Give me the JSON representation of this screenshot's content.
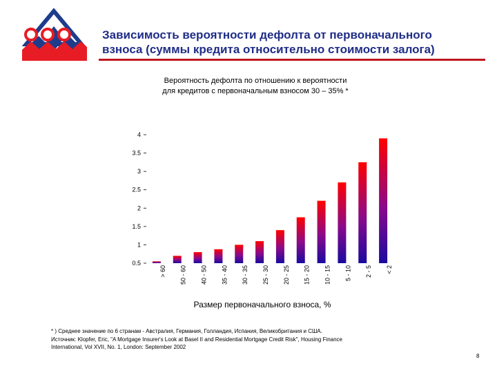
{
  "slide": {
    "title_line1": "Зависимость вероятности дефолта от первоначального",
    "title_line2": "взноса (суммы кредита относительно стоимости залога)",
    "page_number": "8",
    "accent_color": "#c0141c",
    "title_color": "#1f2d87"
  },
  "chart_data": {
    "type": "bar",
    "title_line1": "Вероятность дефолта по отношению к вероятности",
    "title_line2": "для кредитов с первоначальным взносом 30 – 35% *",
    "xlabel": "Размер первоначального взноса, %",
    "ylabel": "",
    "ylim": [
      0.5,
      4
    ],
    "yticks": [
      "0.5",
      "1",
      "1.5",
      "2",
      "2.5",
      "3",
      "3.5",
      "4"
    ],
    "categories": [
      "> 60",
      "50 - 60",
      "40 - 50",
      "35 - 40",
      "30 - 35",
      "25 - 30",
      "20 - 25",
      "15 - 20",
      "10 - 15",
      "5 - 10",
      "2 - 5",
      "< 2"
    ],
    "values": [
      0.55,
      0.7,
      0.8,
      0.88,
      1.0,
      1.1,
      1.4,
      1.75,
      2.2,
      2.7,
      3.25,
      3.9
    ],
    "gradient_colors": [
      "#ff0000",
      "#8a0a8a",
      "#1a0aa0"
    ],
    "grid": false,
    "legend": "none"
  },
  "footnote": {
    "line1": "* ) Среднее значение по 6 странам - Австралия, Германия, Голландия, Испания, Великобритания и США.",
    "line2": "Источник: Klopfer, Eric, \"A Mortgage Insurer's Look at Basel II and Residential Mortgage Credit Risk\",  Housing Finance",
    "line3": "International, Vol XVII, No. 1, London: September 2002"
  }
}
